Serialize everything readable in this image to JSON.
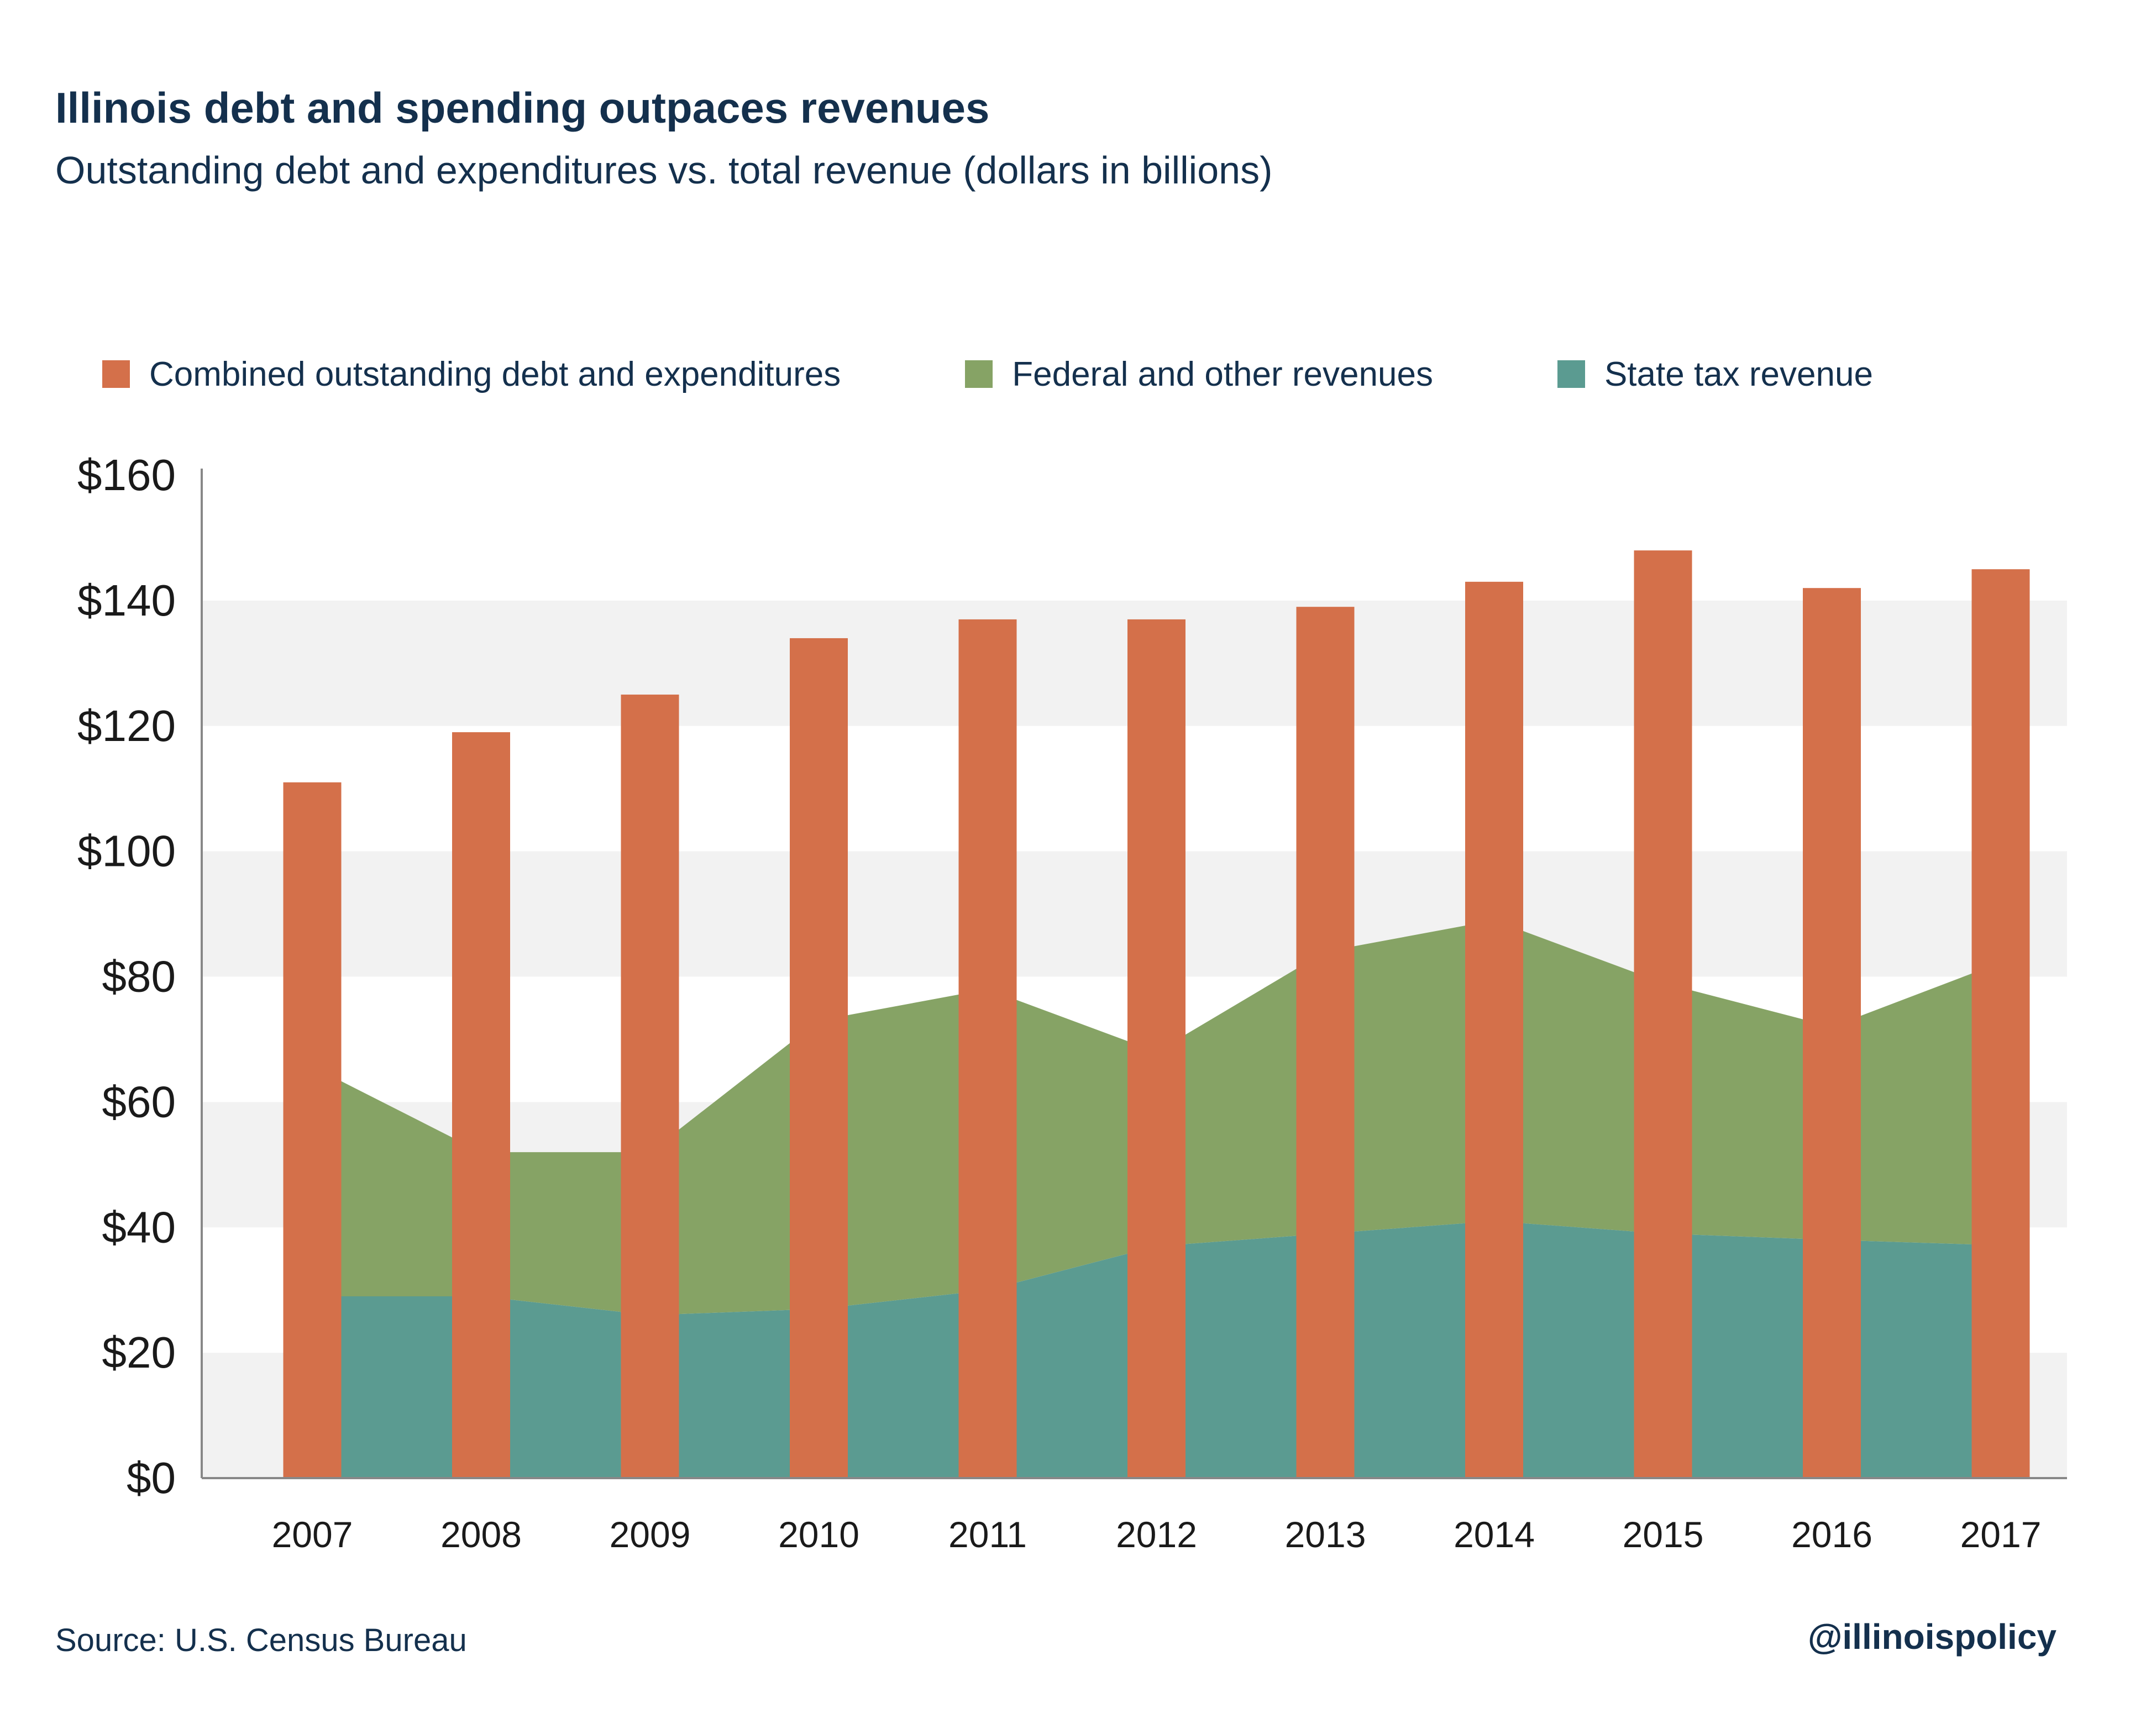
{
  "title": "Illinois debt and spending outpaces revenues",
  "subtitle": "Outstanding debt and expenditures vs. total revenue (dollars in billions)",
  "source": "Source:  U.S. Census Bureau",
  "handle": "@illinoispolicy",
  "colors": {
    "debt": "#d4704a",
    "federal": "#86a365",
    "state": "#5b9b91",
    "band": "#f2f2f2",
    "text": "#14304d",
    "axis": "#888888"
  },
  "chart_data": {
    "type": "bar",
    "categories": [
      "2007",
      "2008",
      "2009",
      "2010",
      "2011",
      "2012",
      "2013",
      "2014",
      "2015",
      "2016",
      "2017"
    ],
    "series": [
      {
        "name": "Combined outstanding debt and expenditures",
        "kind": "bar",
        "values": [
          111,
          119,
          125,
          134,
          137,
          137,
          139,
          143,
          148,
          142,
          145
        ]
      },
      {
        "name": "Federal and other revenues",
        "kind": "stacked-area",
        "values": [
          39,
          23,
          26,
          46,
          48,
          31,
          45,
          48,
          40,
          34,
          47
        ]
      },
      {
        "name": "State tax revenue",
        "kind": "stacked-area",
        "values": [
          29,
          29,
          26,
          27,
          30,
          37,
          39,
          41,
          39,
          38,
          37
        ]
      }
    ],
    "y_ticks": [
      "$0",
      "$20",
      "$40",
      "$60",
      "$80",
      "$100",
      "$120",
      "$140",
      "$160"
    ],
    "ylim": [
      0,
      160
    ],
    "legend": "top",
    "grid": "alternating horizontal bands"
  }
}
